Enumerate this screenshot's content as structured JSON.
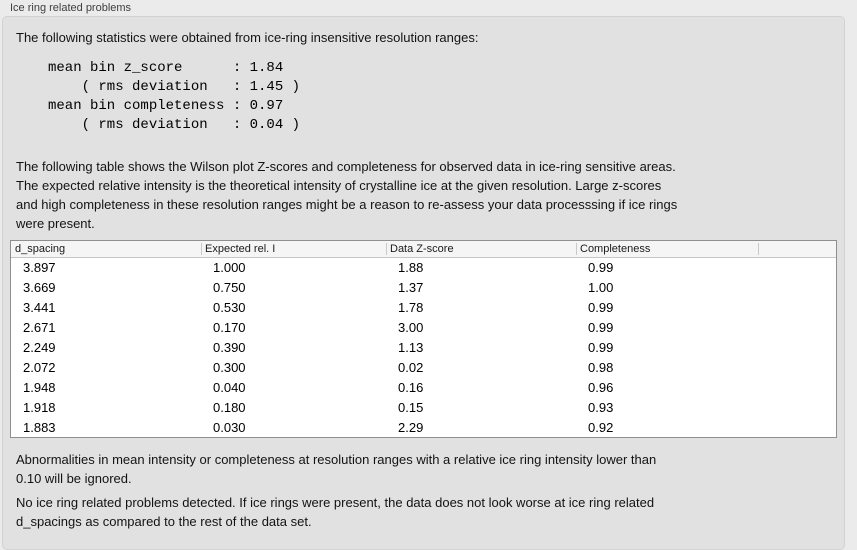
{
  "panel": {
    "title": "Ice ring related problems"
  },
  "intro": "The following statistics were obtained from ice-ring insensitive resolution ranges:",
  "stats_block": "mean bin z_score      : 1.84\n    ( rms deviation   : 1.45 )\nmean bin completeness : 0.97\n    ( rms deviation   : 0.04 )",
  "stats": {
    "mean_bin_z_score": "1.84",
    "z_score_rms_deviation": "1.45",
    "mean_bin_completeness": "0.97",
    "completeness_rms_deviation": "0.04"
  },
  "description": "The following table shows the Wilson plot Z-scores and completeness for observed data in ice-ring sensitive areas.\nThe expected relative intensity is the theoretical intensity of crystalline ice at the given resolution. Large z-scores\nand high completeness in these resolution ranges might be a reason to re-assess your data processsing if ice rings\nwere present.",
  "table": {
    "columns": [
      "d_spacing",
      "Expected rel. I",
      "Data Z-score",
      "Completeness"
    ],
    "rows": [
      [
        "3.897",
        "1.000",
        "1.88",
        "0.99"
      ],
      [
        "3.669",
        "0.750",
        "1.37",
        "1.00"
      ],
      [
        "3.441",
        "0.530",
        "1.78",
        "0.99"
      ],
      [
        "2.671",
        "0.170",
        "3.00",
        "0.99"
      ],
      [
        "2.249",
        "0.390",
        "1.13",
        "0.99"
      ],
      [
        "2.072",
        "0.300",
        "0.02",
        "0.98"
      ],
      [
        "1.948",
        "0.040",
        "0.16",
        "0.96"
      ],
      [
        "1.918",
        "0.180",
        "0.15",
        "0.93"
      ],
      [
        "1.883",
        "0.030",
        "2.29",
        "0.92"
      ]
    ]
  },
  "note": "Abnormalities in mean intensity or completeness at resolution ranges with a relative ice ring intensity lower than\n0.10 will be ignored.",
  "conclusion": "No ice ring related problems detected. If ice rings were present, the data does not look worse at ice ring related\nd_spacings as compared to the rest of the data set."
}
